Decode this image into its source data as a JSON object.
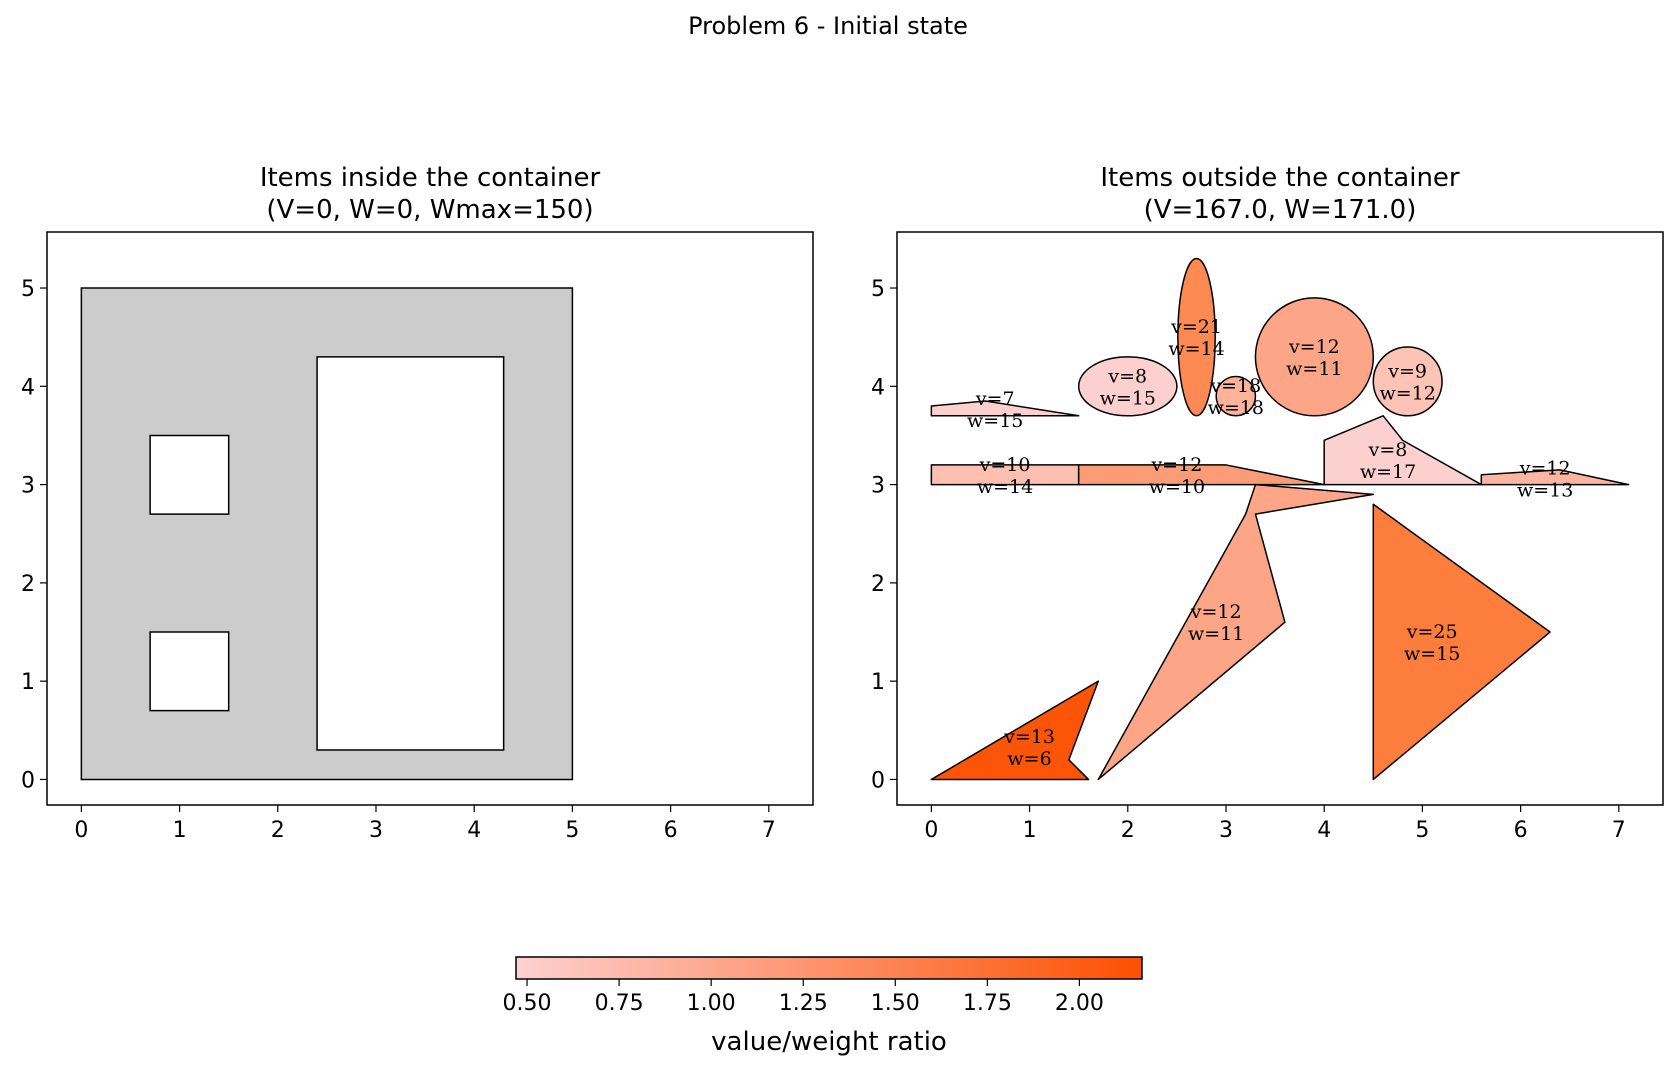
{
  "figure_title": "Problem 6 - Initial state",
  "chart_data": [
    {
      "type": "polygon-packing",
      "panel": "left",
      "title_line1": "Items inside the container",
      "title_line2": "(V=0, W=0, Wmax=150)",
      "xlim": [
        -0.35,
        7.45
      ],
      "ylim": [
        -0.26,
        5.57
      ],
      "xticks": [
        0,
        1,
        2,
        3,
        4,
        5,
        6,
        7
      ],
      "yticks": [
        0,
        1,
        2,
        3,
        4,
        5
      ],
      "container": {
        "fill": "#cccccc",
        "outer": [
          [
            0,
            0
          ],
          [
            5,
            0
          ],
          [
            5,
            5
          ],
          [
            0,
            5
          ]
        ],
        "holes": [
          [
            [
              0.7,
              2.7
            ],
            [
              1.5,
              2.7
            ],
            [
              1.5,
              3.5
            ],
            [
              0.7,
              3.5
            ]
          ],
          [
            [
              0.7,
              0.7
            ],
            [
              1.5,
              0.7
            ],
            [
              1.5,
              1.5
            ],
            [
              0.7,
              1.5
            ]
          ],
          [
            [
              2.4,
              0.3
            ],
            [
              4.3,
              0.3
            ],
            [
              4.3,
              4.3
            ],
            [
              2.4,
              4.3
            ]
          ]
        ]
      }
    },
    {
      "type": "polygon-packing",
      "panel": "right",
      "title_line1": "Items outside the container",
      "title_line2": "(V=167.0, W=171.0)",
      "xlim": [
        -0.35,
        7.45
      ],
      "ylim": [
        -0.26,
        5.57
      ],
      "xticks": [
        0,
        1,
        2,
        3,
        4,
        5,
        6,
        7
      ],
      "yticks": [
        0,
        1,
        2,
        3,
        4,
        5
      ],
      "items": [
        {
          "shape": "polygon",
          "points": [
            [
              0,
              3.7
            ],
            [
              1.5,
              3.7
            ],
            [
              0.55,
              3.85
            ],
            [
              0,
              3.8
            ]
          ],
          "fill": "#fdd0d0",
          "v_label": "v=7",
          "w_label": "w=15",
          "label_pos": [
            0.65,
            3.77
          ]
        },
        {
          "shape": "ellipse",
          "center": [
            2,
            4
          ],
          "radii": [
            0.5,
            0.3
          ],
          "fill": "#fdd0d0",
          "v_label": "v=8",
          "w_label": "w=15",
          "label_pos": [
            2,
            4
          ]
        },
        {
          "shape": "ellipse",
          "center": [
            2.7,
            4.5
          ],
          "radii": [
            0.19,
            0.8
          ],
          "fill": "#fc8a52",
          "v_label": "v=21",
          "w_label": "w=14",
          "label_pos": [
            2.7,
            4.5
          ]
        },
        {
          "shape": "ellipse",
          "center": [
            3.1,
            3.9
          ],
          "radii": [
            0.2,
            0.2
          ],
          "fill": "#fcb39a",
          "v_label": "v=18",
          "w_label": "w=18",
          "label_pos": [
            3.1,
            3.9
          ]
        },
        {
          "shape": "ellipse",
          "center": [
            3.9,
            4.3
          ],
          "radii": [
            0.6,
            0.6
          ],
          "fill": "#fca587",
          "v_label": "v=12",
          "w_label": "w=11",
          "label_pos": [
            3.9,
            4.3
          ]
        },
        {
          "shape": "ellipse",
          "center": [
            4.85,
            4.05
          ],
          "radii": [
            0.35,
            0.35
          ],
          "fill": "#fcc3b6",
          "v_label": "v=9",
          "w_label": "w=12",
          "label_pos": [
            4.85,
            4.05
          ]
        },
        {
          "shape": "polygon",
          "points": [
            [
              0,
              3
            ],
            [
              1.5,
              3
            ],
            [
              1.5,
              3.2
            ],
            [
              0,
              3.2
            ]
          ],
          "fill": "#fcbfb0",
          "v_label": "v=10",
          "w_label": "w=14",
          "label_pos": [
            0.75,
            3.1
          ]
        },
        {
          "shape": "polygon",
          "points": [
            [
              1.5,
              3
            ],
            [
              4,
              3
            ],
            [
              3,
              3.2
            ],
            [
              1.5,
              3.2
            ]
          ],
          "fill": "#fc9c77",
          "v_label": "v=12",
          "w_label": "w=10",
          "label_pos": [
            2.5,
            3.1
          ]
        },
        {
          "shape": "polygon",
          "points": [
            [
              4,
              3
            ],
            [
              5.6,
              3
            ],
            [
              4.8,
              3.45
            ],
            [
              4.6,
              3.7
            ],
            [
              4,
              3.45
            ]
          ],
          "fill": "#fdd0d0",
          "v_label": "v=8",
          "w_label": "w=17",
          "label_pos": [
            4.65,
            3.25
          ]
        },
        {
          "shape": "polygon",
          "points": [
            [
              5.6,
              3
            ],
            [
              7.1,
              3
            ],
            [
              6.4,
              3.15
            ],
            [
              5.6,
              3.1
            ]
          ],
          "fill": "#fcb5a0",
          "v_label": "v=12",
          "w_label": "w=13",
          "label_pos": [
            6.25,
            3.06
          ]
        },
        {
          "shape": "polygon",
          "points": [
            [
              1.7,
              0
            ],
            [
              3.6,
              1.6
            ],
            [
              3.3,
              2.7
            ],
            [
              4.5,
              2.9
            ],
            [
              3.3,
              3
            ],
            [
              3.2,
              2.7
            ]
          ],
          "fill": "#fca587",
          "v_label": "v=12",
          "w_label": "w=11",
          "label_pos": [
            2.9,
            1.6
          ]
        },
        {
          "shape": "polygon",
          "points": [
            [
              4.5,
              0
            ],
            [
              6.3,
              1.5
            ],
            [
              4.5,
              2.8
            ]
          ],
          "fill": "#fc7d3c",
          "v_label": "v=25",
          "w_label": "w=15",
          "label_pos": [
            5.1,
            1.4
          ]
        },
        {
          "shape": "polygon",
          "points": [
            [
              0,
              0
            ],
            [
              1.6,
              0
            ],
            [
              1.4,
              0.2
            ],
            [
              1.7,
              1
            ]
          ],
          "fill": "#fd5508",
          "v_label": "v=13",
          "w_label": "w=6",
          "label_pos": [
            1,
            0.33
          ]
        }
      ]
    }
  ],
  "colorbar": {
    "label": "value/weight ratio",
    "min": 0.47,
    "max": 2.17,
    "ticks": [
      0.5,
      0.75,
      1.0,
      1.25,
      1.5,
      1.75,
      2.0
    ],
    "tick_labels": [
      "0.50",
      "0.75",
      "1.00",
      "1.25",
      "1.50",
      "1.75",
      "2.00"
    ],
    "color_start": "#fdd0d0",
    "color_end": "#fd5000"
  }
}
